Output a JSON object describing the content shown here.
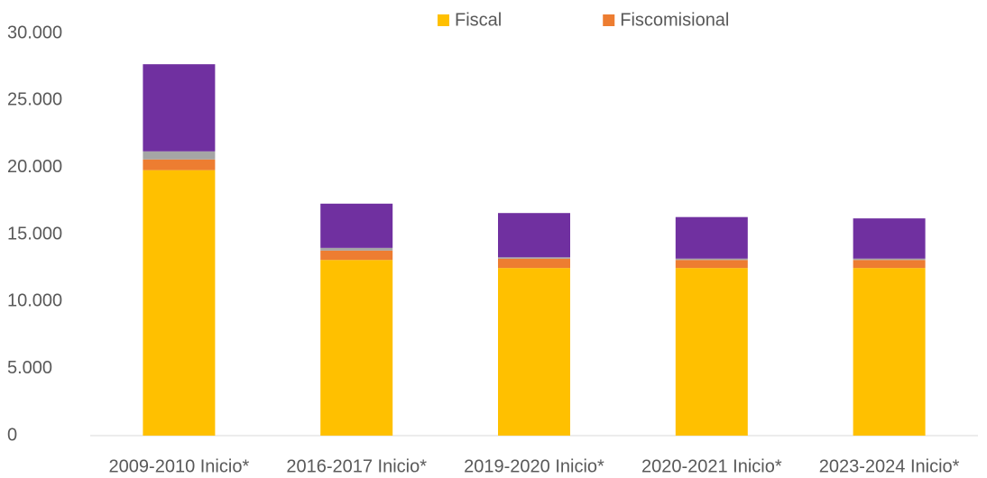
{
  "chart_data": {
    "type": "stacked_bar",
    "categories": [
      "2009-2010 Inicio*",
      "2016-2017 Inicio*",
      "2019-2020 Inicio*",
      "2020-2021 Inicio*",
      "2023-2024 Inicio*"
    ],
    "series": [
      {
        "name": "Fiscal",
        "color": "#FFC000",
        "values": [
          19800,
          13100,
          12500,
          12500,
          12500
        ]
      },
      {
        "name": "Fiscomisional",
        "color": "#ED7D31",
        "values": [
          800,
          700,
          700,
          600,
          600
        ]
      },
      {
        "color": "#A5A5A5",
        "values": [
          600,
          200,
          100,
          100,
          100
        ]
      },
      {
        "color": "#7030A0",
        "values": [
          6500,
          3300,
          3300,
          3100,
          3000
        ]
      }
    ],
    "ylim": [
      0,
      30000
    ],
    "yticks": [
      0,
      {
        "value": 5000,
        "label": "5.000"
      },
      {
        "value": 10000,
        "label": "10.000"
      },
      {
        "value": 15000,
        "label": "15.000"
      },
      {
        "value": 20000,
        "label": "20.000"
      },
      {
        "value": 25000,
        "label": "25.000"
      },
      {
        "value": 30000,
        "label": "30.000"
      }
    ],
    "grid": false,
    "legend": "top"
  }
}
